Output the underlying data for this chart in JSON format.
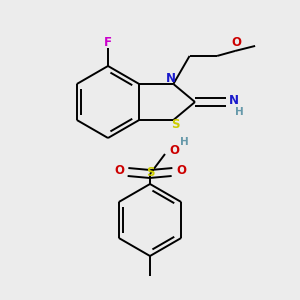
{
  "bg_color": "#ececec",
  "line_color": "#000000",
  "fig_width": 3.0,
  "fig_height": 3.0,
  "dpi": 100,
  "colors": {
    "F": "#cc00cc",
    "N": "#1a1acc",
    "S": "#cccc00",
    "O": "#cc0000",
    "H": "#6699aa",
    "C": "#000000"
  }
}
